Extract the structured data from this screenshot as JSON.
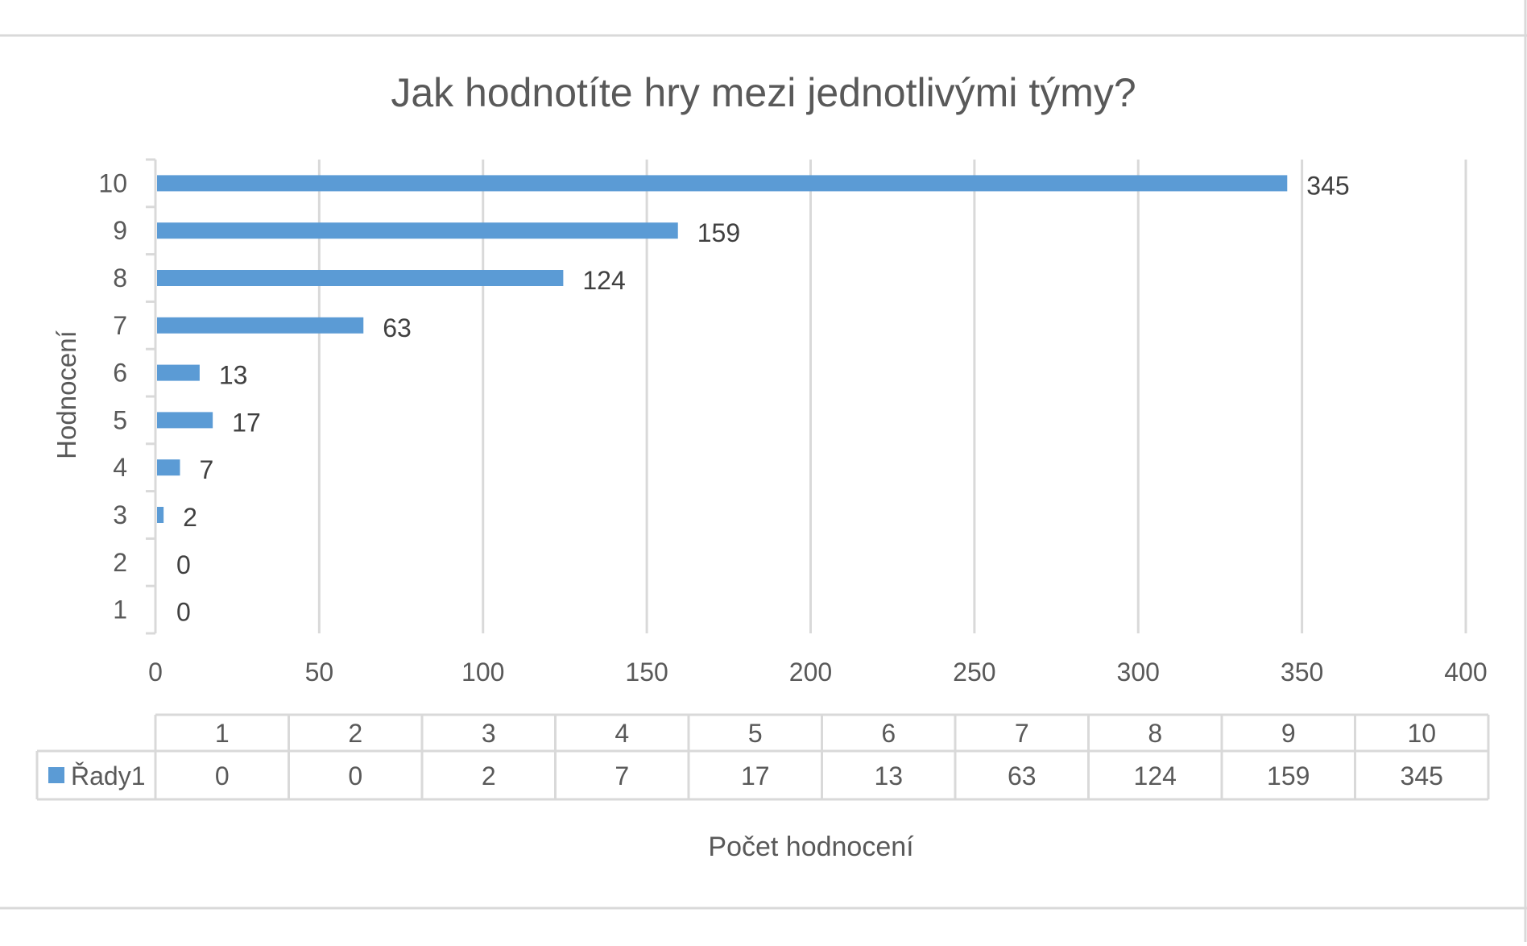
{
  "chart_data": {
    "type": "bar",
    "orientation": "horizontal",
    "title": "Jak hodnotíte hry mezi jednotlivými týmy?",
    "xlabel": "Počet hodnocení",
    "ylabel": "Hodnocení",
    "categories": [
      "1",
      "2",
      "3",
      "4",
      "5",
      "6",
      "7",
      "8",
      "9",
      "10"
    ],
    "series": [
      {
        "name": "Řady1",
        "values": [
          0,
          0,
          2,
          7,
          17,
          13,
          63,
          124,
          159,
          345
        ]
      }
    ],
    "xlim": [
      0,
      400
    ],
    "xticks": [
      "0",
      "50",
      "100",
      "150",
      "200",
      "250",
      "300",
      "350",
      "400"
    ],
    "grid": true,
    "data_labels": true,
    "data_table": true,
    "colors": {
      "bar": "#5b9bd5",
      "grid": "#d9d9d9",
      "text": "#595959",
      "border": "#d9d9d9"
    }
  }
}
